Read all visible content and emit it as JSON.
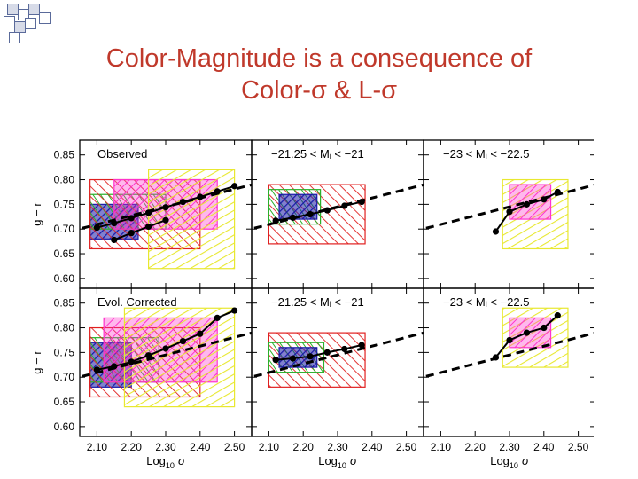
{
  "slide": {
    "title_line1": "Color-Magnitude is a consequence of",
    "title_line2": "Color-σ & L-σ"
  },
  "colors": {
    "title": "#c0392b",
    "decor_dark": "#5a6a9a",
    "decor_light": "#d7dbe8"
  },
  "chart_data": {
    "type": "line",
    "ylabel": "g − r",
    "xlabel_main": "Log",
    "xlabel_sub": "10",
    "xlabel_sym": "σ",
    "xlim": [
      2.05,
      2.55
    ],
    "ylim": [
      0.58,
      0.88
    ],
    "xticks": [
      2.1,
      2.2,
      2.3,
      2.4,
      2.5
    ],
    "xtick_labels": [
      "2.10",
      "2.20",
      "2.30",
      "2.40",
      "2.50"
    ],
    "yticks": [
      0.6,
      0.65,
      0.7,
      0.75,
      0.8,
      0.85
    ],
    "ytick_labels": [
      "0.60",
      "0.65",
      "0.70",
      "0.75",
      "0.80",
      "0.85"
    ],
    "fit_line": {
      "x": [
        2.02,
        2.58
      ],
      "y": [
        0.695,
        0.795
      ]
    },
    "panels": [
      {
        "row": 0,
        "col": 0,
        "label": "Observed",
        "series": [
          {
            "name": "upper-sequence",
            "x": [
              2.1,
              2.15,
              2.2,
              2.25,
              2.3,
              2.35,
              2.4,
              2.45,
              2.5
            ],
            "y": [
              0.703,
              0.712,
              0.722,
              0.733,
              0.744,
              0.755,
              0.765,
              0.776,
              0.787
            ]
          },
          {
            "name": "lower-sequence",
            "x": [
              2.15,
              2.2,
              2.25,
              2.3
            ],
            "y": [
              0.678,
              0.692,
              0.705,
              0.718
            ]
          }
        ],
        "bands": [
          {
            "color": "#1a1aa8",
            "x0": 2.08,
            "x1": 2.22,
            "y0": 0.68,
            "y1": 0.75
          },
          {
            "color": "#2bb02b",
            "x0": 2.08,
            "x1": 2.3,
            "y0": 0.7,
            "y1": 0.77
          },
          {
            "color": "#e02020",
            "x0": 2.08,
            "x1": 2.4,
            "y0": 0.66,
            "y1": 0.8
          },
          {
            "color": "#ff33cc",
            "x0": 2.15,
            "x1": 2.45,
            "y0": 0.7,
            "y1": 0.8
          },
          {
            "color": "#e8e830",
            "x0": 2.25,
            "x1": 2.5,
            "y0": 0.62,
            "y1": 0.82
          }
        ]
      },
      {
        "row": 0,
        "col": 1,
        "label": "−21.25 < Mᵢ < −21",
        "series": [
          {
            "name": "sequence",
            "x": [
              2.12,
              2.17,
              2.22,
              2.27,
              2.32,
              2.37
            ],
            "y": [
              0.717,
              0.723,
              0.73,
              0.738,
              0.747,
              0.755
            ]
          }
        ],
        "bands": [
          {
            "color": "#e02020",
            "x0": 2.1,
            "x1": 2.38,
            "y0": 0.67,
            "y1": 0.79
          },
          {
            "color": "#2bb02b",
            "x0": 2.1,
            "x1": 2.25,
            "y0": 0.71,
            "y1": 0.78
          },
          {
            "color": "#1a1aa8",
            "x0": 2.13,
            "x1": 2.24,
            "y0": 0.72,
            "y1": 0.77
          }
        ]
      },
      {
        "row": 0,
        "col": 2,
        "label": "−23 < Mᵢ < −22.5",
        "series": [
          {
            "name": "sequence",
            "x": [
              2.26,
              2.3,
              2.35,
              2.4,
              2.44
            ],
            "y": [
              0.695,
              0.735,
              0.75,
              0.76,
              0.775
            ]
          }
        ],
        "bands": [
          {
            "color": "#e8e830",
            "x0": 2.28,
            "x1": 2.47,
            "y0": 0.66,
            "y1": 0.8
          },
          {
            "color": "#ff33cc",
            "x0": 2.3,
            "x1": 2.42,
            "y0": 0.72,
            "y1": 0.79
          }
        ]
      },
      {
        "row": 1,
        "col": 0,
        "label": "Evol. Corrected",
        "series": [
          {
            "name": "sequence",
            "x": [
              2.1,
              2.15,
              2.2,
              2.25,
              2.3,
              2.35,
              2.4,
              2.45,
              2.5
            ],
            "y": [
              0.715,
              0.722,
              0.731,
              0.744,
              0.758,
              0.773,
              0.788,
              0.82,
              0.835
            ]
          }
        ],
        "bands": [
          {
            "color": "#1a1aa8",
            "x0": 2.08,
            "x1": 2.2,
            "y0": 0.68,
            "y1": 0.77
          },
          {
            "color": "#2bb02b",
            "x0": 2.08,
            "x1": 2.28,
            "y0": 0.69,
            "y1": 0.78
          },
          {
            "color": "#e02020",
            "x0": 2.08,
            "x1": 2.4,
            "y0": 0.66,
            "y1": 0.8
          },
          {
            "color": "#ff33cc",
            "x0": 2.12,
            "x1": 2.45,
            "y0": 0.69,
            "y1": 0.82
          },
          {
            "color": "#e8e830",
            "x0": 2.18,
            "x1": 2.5,
            "y0": 0.64,
            "y1": 0.84
          }
        ]
      },
      {
        "row": 1,
        "col": 1,
        "label": "−21.25 < Mᵢ < −21",
        "series": [
          {
            "name": "sequence",
            "x": [
              2.12,
              2.17,
              2.22,
              2.27,
              2.32,
              2.37
            ],
            "y": [
              0.735,
              0.738,
              0.742,
              0.75,
              0.757,
              0.765
            ]
          }
        ],
        "bands": [
          {
            "color": "#e02020",
            "x0": 2.1,
            "x1": 2.38,
            "y0": 0.68,
            "y1": 0.79
          },
          {
            "color": "#2bb02b",
            "x0": 2.1,
            "x1": 2.26,
            "y0": 0.71,
            "y1": 0.77
          },
          {
            "color": "#1a1aa8",
            "x0": 2.13,
            "x1": 2.24,
            "y0": 0.72,
            "y1": 0.76
          }
        ]
      },
      {
        "row": 1,
        "col": 2,
        "label": "−23 < Mᵢ < −22.5",
        "series": [
          {
            "name": "sequence",
            "x": [
              2.26,
              2.3,
              2.35,
              2.4,
              2.44
            ],
            "y": [
              0.74,
              0.775,
              0.79,
              0.8,
              0.825
            ]
          }
        ],
        "bands": [
          {
            "color": "#e8e830",
            "x0": 2.28,
            "x1": 2.47,
            "y0": 0.72,
            "y1": 0.84
          },
          {
            "color": "#ff33cc",
            "x0": 2.3,
            "x1": 2.42,
            "y0": 0.76,
            "y1": 0.82
          }
        ]
      }
    ]
  }
}
